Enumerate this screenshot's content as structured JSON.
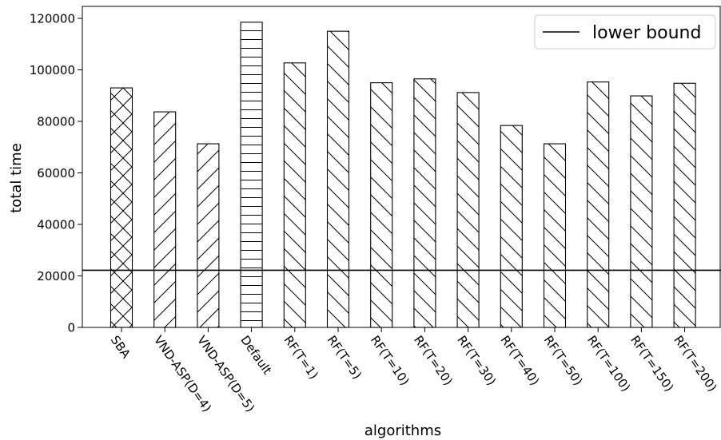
{
  "chart_data": {
    "type": "bar",
    "title": "",
    "xlabel": "algorithms",
    "ylabel": "total time",
    "categories": [
      "SBA",
      "VND-ASP(D=4)",
      "VND-ASP(D=5)",
      "Default",
      "RF(T=1)",
      "RF(T=5)",
      "RF(T=10)",
      "RF(T=20)",
      "RF(T=30)",
      "RF(T=40)",
      "RF(T=50)",
      "RF(T=100)",
      "RF(T=150)",
      "RF(T=200)"
    ],
    "values": [
      93000,
      83700,
      71300,
      118500,
      102700,
      115000,
      95000,
      96500,
      91200,
      78400,
      71300,
      95300,
      89900,
      94800
    ],
    "hatches": [
      "crosshatch",
      "forward",
      "forward",
      "horizontal",
      "back",
      "back",
      "back",
      "back",
      "back",
      "back",
      "back",
      "back",
      "back",
      "back"
    ],
    "ylim": [
      0,
      120000
    ],
    "yticks": [
      0,
      20000,
      40000,
      60000,
      80000,
      100000,
      120000
    ],
    "ytick_labels": [
      "0",
      "20000",
      "40000",
      "60000",
      "80000",
      "100000",
      "120000"
    ],
    "reference_line": {
      "label": "lower bound",
      "value": 22200,
      "color": "#000000"
    },
    "legend": {
      "position": "top-right",
      "entries": [
        "lower bound"
      ]
    },
    "grid": false,
    "bar_fill": "#ffffff",
    "bar_edge": "#000000"
  }
}
